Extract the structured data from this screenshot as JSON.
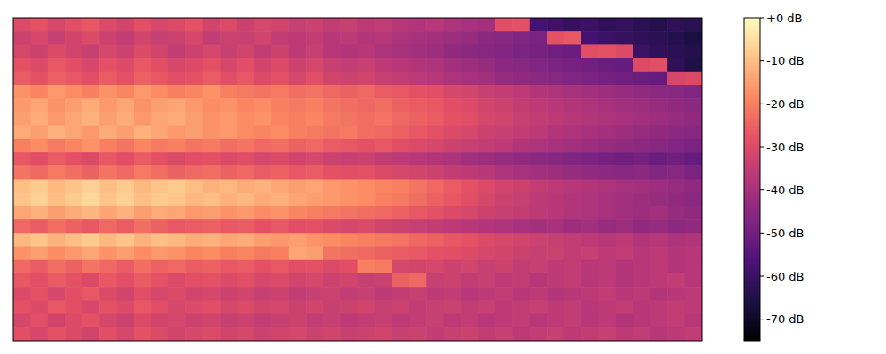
{
  "chart_data": {
    "type": "heatmap",
    "color": "magma",
    "tick_labels": false,
    "zlim": [
      -75,
      0
    ],
    "zticks": [
      {
        "value": 0,
        "label": "+0 dB"
      },
      {
        "value": -10,
        "label": "-10 dB"
      },
      {
        "value": -20,
        "label": "-20 dB"
      },
      {
        "value": -30,
        "label": "-30 dB"
      },
      {
        "value": -40,
        "label": "-40 dB"
      },
      {
        "value": -50,
        "label": "-50 dB"
      },
      {
        "value": -60,
        "label": "-60 dB"
      },
      {
        "value": -70,
        "label": "-70 dB"
      }
    ],
    "cells": [
      [
        -30,
        -28,
        -31,
        -29,
        -27,
        -30,
        -32,
        -29,
        -31,
        -30,
        -28,
        -32,
        -30,
        -33,
        -31,
        -32,
        -34,
        -33,
        -35,
        -34,
        -36,
        -35,
        -37,
        -38,
        -37,
        -39,
        -40,
        -41,
        -29,
        -28,
        -58,
        -59,
        -61,
        -60,
        -62,
        -61,
        -63,
        -64,
        -62,
        -63
      ],
      [
        -33,
        -31,
        -34,
        -32,
        -30,
        -33,
        -35,
        -32,
        -34,
        -33,
        -31,
        -35,
        -33,
        -34,
        -32,
        -35,
        -36,
        -35,
        -37,
        -36,
        -38,
        -37,
        -39,
        -40,
        -41,
        -42,
        -43,
        -45,
        -46,
        -47,
        -48,
        -28,
        -27,
        -58,
        -60,
        -61,
        -62,
        -63,
        -64,
        -66
      ],
      [
        -31,
        -33,
        -30,
        -32,
        -34,
        -31,
        -33,
        -30,
        -32,
        -35,
        -33,
        -31,
        -34,
        -32,
        -35,
        -33,
        -36,
        -34,
        -37,
        -38,
        -37,
        -39,
        -40,
        -41,
        -42,
        -44,
        -45,
        -46,
        -47,
        -48,
        -49,
        -50,
        -51,
        -29,
        -28,
        -30,
        -60,
        -62,
        -63,
        -64
      ],
      [
        -28,
        -30,
        -27,
        -29,
        -31,
        -28,
        -30,
        -27,
        -29,
        -31,
        -30,
        -28,
        -31,
        -29,
        -32,
        -30,
        -33,
        -31,
        -34,
        -35,
        -34,
        -36,
        -37,
        -38,
        -39,
        -41,
        -42,
        -43,
        -45,
        -46,
        -47,
        -48,
        -49,
        -50,
        -51,
        -52,
        -30,
        -29,
        -62,
        -65
      ],
      [
        -26,
        -28,
        -25,
        -27,
        -29,
        -26,
        -28,
        -25,
        -27,
        -29,
        -28,
        -26,
        -29,
        -27,
        -30,
        -28,
        -31,
        -29,
        -32,
        -33,
        -32,
        -34,
        -35,
        -36,
        -37,
        -39,
        -40,
        -41,
        -43,
        -44,
        -45,
        -46,
        -47,
        -48,
        -49,
        -50,
        -51,
        -52,
        -31,
        -30
      ],
      [
        -17,
        -19,
        -16,
        -18,
        -20,
        -17,
        -19,
        -16,
        -18,
        -20,
        -19,
        -17,
        -20,
        -21,
        -22,
        -21,
        -23,
        -22,
        -24,
        -25,
        -24,
        -26,
        -27,
        -28,
        -29,
        -31,
        -32,
        -34,
        -35,
        -36,
        -38,
        -39,
        -40,
        -41,
        -42,
        -43,
        -44,
        -45,
        -46,
        -47
      ],
      [
        -16,
        -14,
        -17,
        -15,
        -13,
        -16,
        -14,
        -17,
        -15,
        -14,
        -16,
        -18,
        -17,
        -19,
        -18,
        -20,
        -21,
        -20,
        -22,
        -23,
        -24,
        -23,
        -25,
        -26,
        -27,
        -29,
        -30,
        -32,
        -33,
        -35,
        -36,
        -37,
        -38,
        -39,
        -40,
        -41,
        -42,
        -43,
        -44,
        -45
      ],
      [
        -15,
        -13,
        -16,
        -14,
        -12,
        -15,
        -13,
        -16,
        -14,
        -13,
        -15,
        -17,
        -16,
        -18,
        -17,
        -19,
        -20,
        -19,
        -21,
        -22,
        -23,
        -22,
        -24,
        -25,
        -26,
        -28,
        -29,
        -31,
        -32,
        -34,
        -35,
        -36,
        -37,
        -38,
        -39,
        -40,
        -41,
        -42,
        -43,
        -44
      ],
      [
        -13,
        -15,
        -12,
        -14,
        -16,
        -13,
        -15,
        -12,
        -14,
        -16,
        -15,
        -17,
        -16,
        -18,
        -19,
        -18,
        -20,
        -21,
        -22,
        -21,
        -23,
        -24,
        -25,
        -27,
        -28,
        -30,
        -31,
        -33,
        -34,
        -35,
        -36,
        -38,
        -39,
        -40,
        -41,
        -42,
        -43,
        -44,
        -45,
        -46
      ],
      [
        -20,
        -18,
        -21,
        -19,
        -17,
        -20,
        -22,
        -19,
        -21,
        -20,
        -22,
        -21,
        -23,
        -22,
        -24,
        -23,
        -25,
        -24,
        -26,
        -27,
        -28,
        -27,
        -29,
        -30,
        -31,
        -33,
        -34,
        -35,
        -36,
        -38,
        -39,
        -40,
        -41,
        -42,
        -43,
        -44,
        -45,
        -46,
        -47,
        -48
      ],
      [
        -27,
        -29,
        -26,
        -28,
        -30,
        -27,
        -29,
        -26,
        -28,
        -30,
        -29,
        -28,
        -30,
        -29,
        -31,
        -30,
        -32,
        -31,
        -33,
        -34,
        -33,
        -35,
        -36,
        -37,
        -38,
        -39,
        -41,
        -42,
        -43,
        -44,
        -45,
        -46,
        -47,
        -48,
        -49,
        -50,
        -49,
        -51,
        -50,
        -52
      ],
      [
        -22,
        -24,
        -21,
        -23,
        -25,
        -22,
        -24,
        -21,
        -23,
        -25,
        -24,
        -23,
        -25,
        -24,
        -26,
        -25,
        -27,
        -26,
        -28,
        -29,
        -28,
        -30,
        -31,
        -32,
        -33,
        -35,
        -36,
        -37,
        -39,
        -40,
        -41,
        -42,
        -43,
        -44,
        -45,
        -46,
        -45,
        -47,
        -46,
        -48
      ],
      [
        -10,
        -8,
        -11,
        -9,
        -7,
        -10,
        -8,
        -11,
        -9,
        -8,
        -10,
        -12,
        -11,
        -13,
        -12,
        -14,
        -15,
        -14,
        -16,
        -17,
        -18,
        -19,
        -20,
        -22,
        -24,
        -26,
        -28,
        -30,
        -32,
        -33,
        -35,
        -36,
        -37,
        -38,
        -39,
        -40,
        -41,
        -42,
        -43,
        -44
      ],
      [
        -9,
        -7,
        -10,
        -8,
        -6,
        -9,
        -7,
        -10,
        -8,
        -9,
        -11,
        -10,
        -12,
        -11,
        -13,
        -12,
        -14,
        -15,
        -16,
        -17,
        -18,
        -20,
        -21,
        -23,
        -25,
        -27,
        -29,
        -31,
        -33,
        -34,
        -36,
        -37,
        -38,
        -39,
        -40,
        -41,
        -42,
        -43,
        -44,
        -45
      ],
      [
        -14,
        -12,
        -15,
        -13,
        -11,
        -14,
        -12,
        -15,
        -13,
        -14,
        -16,
        -15,
        -17,
        -16,
        -18,
        -17,
        -19,
        -20,
        -21,
        -22,
        -23,
        -24,
        -25,
        -27,
        -28,
        -30,
        -31,
        -33,
        -34,
        -35,
        -36,
        -37,
        -38,
        -39,
        -40,
        -41,
        -42,
        -41,
        -43,
        -44
      ],
      [
        -24,
        -26,
        -23,
        -25,
        -27,
        -24,
        -26,
        -23,
        -25,
        -27,
        -26,
        -25,
        -27,
        -26,
        -28,
        -27,
        -29,
        -28,
        -30,
        -31,
        -30,
        -32,
        -33,
        -34,
        -35,
        -36,
        -37,
        -38,
        -39,
        -40,
        -41,
        -40,
        -42,
        -41,
        -43,
        -42,
        -44,
        -43,
        -45,
        -44
      ],
      [
        -11,
        -9,
        -12,
        -10,
        -8,
        -11,
        -9,
        -12,
        -10,
        -11,
        -13,
        -12,
        -14,
        -13,
        -15,
        -16,
        -15,
        -17,
        -18,
        -19,
        -20,
        -21,
        -22,
        -24,
        -25,
        -27,
        -28,
        -30,
        -31,
        -32,
        -33,
        -34,
        -35,
        -36,
        -37,
        -36,
        -38,
        -37,
        -39,
        -38
      ],
      [
        -17,
        -15,
        -18,
        -16,
        -14,
        -17,
        -15,
        -18,
        -16,
        -17,
        -19,
        -18,
        -20,
        -19,
        -21,
        -20,
        -14,
        -15,
        -22,
        -23,
        -24,
        -25,
        -26,
        -27,
        -28,
        -29,
        -30,
        -31,
        -32,
        -33,
        -34,
        -33,
        -35,
        -34,
        -36,
        -35,
        -37,
        -36,
        -38,
        -37
      ],
      [
        -24,
        -26,
        -23,
        -25,
        -22,
        -24,
        -26,
        -23,
        -25,
        -24,
        -26,
        -25,
        -27,
        -26,
        -28,
        -27,
        -29,
        -28,
        -30,
        -29,
        -20,
        -21,
        -31,
        -32,
        -31,
        -33,
        -32,
        -34,
        -33,
        -35,
        -34,
        -36,
        -35,
        -37,
        -36,
        -38,
        -37,
        -36,
        -38,
        -37
      ],
      [
        -27,
        -29,
        -26,
        -28,
        -30,
        -27,
        -29,
        -26,
        -28,
        -30,
        -29,
        -28,
        -30,
        -29,
        -31,
        -30,
        -32,
        -31,
        -33,
        -32,
        -34,
        -33,
        -25,
        -24,
        -34,
        -33,
        -35,
        -34,
        -36,
        -35,
        -37,
        -36,
        -35,
        -37,
        -36,
        -38,
        -37,
        -36,
        -35,
        -37
      ],
      [
        -30,
        -28,
        -31,
        -29,
        -27,
        -30,
        -32,
        -29,
        -31,
        -30,
        -32,
        -31,
        -33,
        -32,
        -34,
        -33,
        -35,
        -34,
        -33,
        -35,
        -34,
        -36,
        -35,
        -34,
        -36,
        -35,
        -37,
        -36,
        -35,
        -37,
        -36,
        -38,
        -37,
        -36,
        -35,
        -37,
        -36,
        -38,
        -37,
        -36
      ],
      [
        -28,
        -30,
        -27,
        -29,
        -31,
        -28,
        -30,
        -27,
        -29,
        -31,
        -30,
        -29,
        -31,
        -30,
        -32,
        -31,
        -33,
        -32,
        -34,
        -33,
        -32,
        -34,
        -33,
        -35,
        -34,
        -33,
        -35,
        -34,
        -36,
        -35,
        -34,
        -36,
        -35,
        -37,
        -36,
        -35,
        -37,
        -36,
        -35,
        -36
      ],
      [
        -31,
        -29,
        -32,
        -30,
        -28,
        -31,
        -33,
        -30,
        -32,
        -31,
        -33,
        -32,
        -34,
        -33,
        -35,
        -34,
        -33,
        -35,
        -34,
        -36,
        -35,
        -34,
        -36,
        -35,
        -34,
        -36,
        -35,
        -37,
        -36,
        -35,
        -37,
        -36,
        -35,
        -37,
        -36,
        -38,
        -37,
        -36,
        -35,
        -37
      ],
      [
        -29,
        -31,
        -28,
        -30,
        -32,
        -29,
        -31,
        -28,
        -30,
        -32,
        -31,
        -30,
        -32,
        -31,
        -33,
        -32,
        -31,
        -33,
        -32,
        -34,
        -33,
        -32,
        -34,
        -33,
        -35,
        -34,
        -33,
        -35,
        -34,
        -36,
        -35,
        -34,
        -36,
        -35,
        -34,
        -36,
        -35,
        -37,
        -36,
        -35
      ]
    ]
  }
}
